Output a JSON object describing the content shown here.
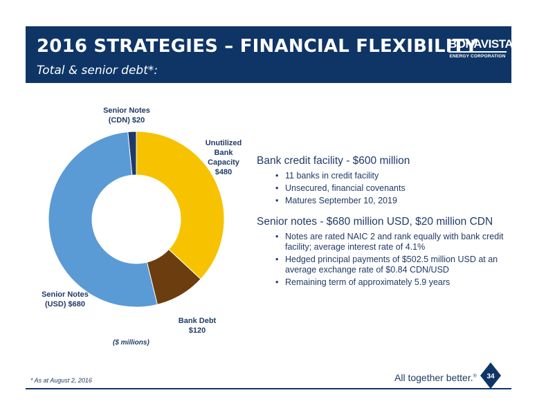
{
  "header": {
    "title": "2016 STRATEGIES – FINANCIAL FLEXIBILITY",
    "subtitle": "Total & senior debt*:",
    "logo_name": "BONAVISTA",
    "logo_sub": "ENERGY CORPORATION"
  },
  "chart_data": {
    "type": "pie",
    "style": "donut",
    "unit_note": "($ millions)",
    "slices": [
      {
        "name": "Senior Notes (CDN)",
        "label_line1": "Senior Notes",
        "label_line2": "(CDN) $20",
        "value": 20,
        "color": "#1f3a66"
      },
      {
        "name": "Unutilized Bank Capacity",
        "label_line1": "Unutilized",
        "label_line2": "Bank",
        "label_line3": "Capacity",
        "label_line4": "$480",
        "value": 480,
        "color": "#f7c200"
      },
      {
        "name": "Bank Debt",
        "label_line1": "Bank Debt",
        "label_line2": "$120",
        "value": 120,
        "color": "#6b3d0f"
      },
      {
        "name": "Senior Notes (USD)",
        "label_line1": "Senior Notes",
        "label_line2": "(USD) $680",
        "value": 680,
        "color": "#5b9bd5"
      }
    ]
  },
  "sections": [
    {
      "heading": "Bank credit facility - $600 million",
      "bullets": [
        "11 banks in credit facility",
        "Unsecured, financial  covenants",
        "Matures September 10, 2019"
      ]
    },
    {
      "heading": "Senior notes - $680 million USD, $20 million CDN",
      "bullets": [
        "Notes are rated NAIC 2 and rank equally with bank credit facility; average interest rate of 4.1%",
        "Hedged principal payments of $502.5 million USD at an average exchange rate of $0.84 CDN/USD",
        "Remaining term of approximately 5.9 years"
      ]
    }
  ],
  "footer": {
    "footnote": "* As at August 2, 2016",
    "tagline": "All together better.",
    "tagline_mark": "®",
    "page_number": "34"
  },
  "colors": {
    "navy": "#0f3566",
    "gold": "#f7c200",
    "brown": "#6b3d0f",
    "blue": "#5b9bd5"
  }
}
